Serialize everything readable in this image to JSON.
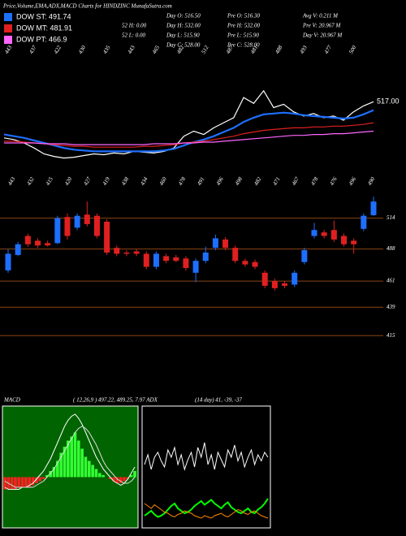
{
  "header": {
    "title": "Price,Volume,EMA,ADX,MACD Charts for HINDZINC MunafaSutra.com",
    "legend": [
      {
        "label": "DOW ST: 491.74",
        "color": "#1e6fff"
      },
      {
        "label": "DOW MT: 481.91",
        "color": "#e02020"
      },
      {
        "label": "DOW PT: 466.9",
        "color": "#ff66ff"
      }
    ],
    "stats": [
      [
        "52 H: 0.00",
        "52 L: 0.00"
      ],
      [
        "Day O: 516.50",
        "Day H: 532.00",
        "Day L: 515.90",
        "Day C: 528.00"
      ],
      [
        "Pre O: 516.30",
        "Pre H: 532.00",
        "Pre L: 515.90",
        "Pre C: 528.00"
      ],
      [
        "Avg V: 0.211 M",
        "Pre V: 20.967 M",
        "Day V: 20.967 M"
      ]
    ]
  },
  "chart_data": [
    {
      "type": "line",
      "annotation": "517.00",
      "ylim": [
        440,
        580
      ],
      "date_labels": [
        443,
        437,
        422,
        430,
        435,
        443,
        465,
        482,
        512,
        487,
        481,
        488,
        493,
        477,
        500
      ],
      "series": [
        {
          "color": "#ffffff",
          "values": [
            474,
            472,
            468,
            462,
            455,
            452,
            450,
            451,
            453,
            455,
            454,
            456,
            455,
            458,
            457,
            456,
            458,
            462,
            476,
            482,
            478,
            486,
            492,
            498,
            522,
            515,
            530,
            510,
            514,
            505,
            500,
            503,
            498,
            500,
            495,
            505,
            512,
            517
          ]
        },
        {
          "color": "#1e6fff",
          "values": [
            478,
            476,
            474,
            471,
            468,
            465,
            462,
            460,
            459,
            458,
            458,
            458,
            458,
            458,
            458,
            458,
            459,
            461,
            465,
            469,
            472,
            476,
            481,
            486,
            493,
            498,
            502,
            503,
            504,
            503,
            501,
            500,
            499,
            498,
            497,
            498,
            502,
            507
          ]
        },
        {
          "color": "#e02020",
          "values": [
            470,
            470,
            469,
            468,
            467,
            466,
            465,
            464,
            464,
            463,
            463,
            463,
            463,
            463,
            464,
            464,
            465,
            466,
            468,
            469,
            470,
            472,
            474,
            476,
            479,
            481,
            483,
            484,
            485,
            486,
            486,
            487,
            487,
            488,
            488,
            489,
            490,
            492
          ]
        },
        {
          "color": "#ff66ff",
          "values": [
            468,
            468,
            468,
            468,
            467,
            467,
            467,
            466,
            466,
            466,
            466,
            466,
            466,
            466,
            466,
            467,
            467,
            467,
            468,
            468,
            469,
            469,
            470,
            471,
            472,
            473,
            474,
            475,
            476,
            477,
            477,
            478,
            478,
            479,
            479,
            480,
            481,
            482
          ]
        }
      ]
    },
    {
      "type": "candlestick",
      "ylim": [
        407,
        537
      ],
      "yticks": [
        514,
        488,
        461,
        439,
        415
      ],
      "up_color": "#1e6fff",
      "down_color": "#e02020",
      "grid_color": "#8b4513",
      "date_labels": [
        443,
        432,
        415,
        420,
        427,
        419,
        438,
        434,
        460,
        478,
        491,
        496,
        498,
        482,
        471,
        467,
        478,
        476,
        496,
        490
      ],
      "open": [
        470,
        483,
        499,
        495,
        493,
        493,
        515,
        506,
        517,
        516,
        511,
        489,
        485,
        486,
        484,
        473,
        482,
        481,
        480,
        468,
        478,
        489,
        496,
        489,
        478,
        477,
        468,
        461,
        459,
        458,
        477,
        499,
        502,
        504,
        499,
        495,
        505,
        516.5
      ],
      "high": [
        488,
        494,
        501,
        497,
        495,
        516,
        518,
        518,
        528,
        518,
        513,
        491,
        487,
        488,
        486,
        486,
        484,
        483,
        482,
        480,
        490,
        500,
        498,
        491,
        480,
        479,
        470,
        463,
        461,
        470,
        489,
        510,
        504,
        512,
        501,
        497,
        518,
        532
      ],
      "low": [
        468,
        482,
        490,
        489,
        490,
        492,
        496,
        504,
        507,
        497,
        483,
        482,
        482,
        482,
        471,
        471,
        476,
        477,
        470,
        460,
        476,
        487,
        487,
        476,
        473,
        471,
        455,
        453,
        455,
        456,
        475,
        497,
        497,
        494,
        490,
        484,
        503,
        515.9
      ],
      "close": [
        484,
        492,
        492,
        491,
        491,
        514,
        499,
        516,
        509,
        499,
        485,
        484,
        484,
        484,
        473,
        484,
        478,
        478,
        472,
        478,
        485,
        497,
        489,
        478,
        475,
        473,
        457,
        455,
        457,
        468,
        487,
        504,
        499,
        496,
        492,
        492,
        516,
        528
      ]
    },
    {
      "type": "macd",
      "title": "MACD",
      "subtitle": "( 12,26,9 ) 497.22, 489.25, 7.97 ADX",
      "ylim": [
        -25,
        35
      ],
      "histogram": [
        -6,
        -6,
        -6,
        -6,
        -5,
        -5,
        -5,
        -5,
        -4,
        -3,
        -2,
        -1,
        1,
        3,
        5,
        8,
        12,
        15,
        18,
        20,
        22,
        18,
        14,
        10,
        8,
        6,
        4,
        2,
        1,
        0,
        -1,
        -2,
        -3,
        -3,
        -2,
        -1,
        1,
        3
      ],
      "series": [
        {
          "color": "#ffffff",
          "values": [
            -5,
            -6,
            -6,
            -6,
            -6,
            -5,
            -5,
            -4,
            -3,
            -1,
            1,
            3,
            6,
            9,
            13,
            17,
            21,
            25,
            28,
            30,
            31,
            29,
            26,
            22,
            18,
            14,
            10,
            7,
            4,
            2,
            0,
            -2,
            -3,
            -4,
            -3,
            -1,
            2,
            5
          ]
        },
        {
          "color": "#dddddd",
          "values": [
            -2,
            -3,
            -4,
            -5,
            -5,
            -5,
            -5,
            -5,
            -5,
            -4,
            -3,
            -2,
            0,
            2,
            4,
            7,
            10,
            13,
            16,
            19,
            22,
            24,
            25,
            24,
            22,
            19,
            16,
            12,
            8,
            5,
            3,
            1,
            -1,
            -2,
            -3,
            -3,
            -2,
            0
          ]
        }
      ]
    },
    {
      "type": "adx",
      "title": "(14 day) 41, -39, -37",
      "ylim": [
        0,
        100
      ],
      "series": [
        {
          "color": "#ffffff",
          "values": [
            52,
            60,
            48,
            58,
            62,
            55,
            50,
            64,
            58,
            66,
            52,
            60,
            48,
            56,
            62,
            50,
            66,
            58,
            70,
            52,
            60,
            48,
            62,
            56,
            50,
            64,
            58,
            68,
            55,
            62,
            50,
            58,
            64,
            52,
            60,
            55,
            62,
            58
          ]
        },
        {
          "color": "#00ff00",
          "values": [
            10,
            12,
            14,
            11,
            9,
            10,
            12,
            15,
            18,
            20,
            16,
            14,
            12,
            13,
            15,
            18,
            20,
            22,
            19,
            21,
            23,
            20,
            18,
            16,
            19,
            21,
            17,
            15,
            13,
            12,
            14,
            16,
            13,
            12,
            15,
            17,
            20,
            24
          ]
        },
        {
          "color": "#ff8c00",
          "values": [
            20,
            18,
            16,
            19,
            17,
            15,
            13,
            12,
            10,
            9,
            11,
            12,
            14,
            13,
            12,
            10,
            9,
            8,
            10,
            9,
            8,
            10,
            11,
            12,
            10,
            9,
            11,
            13,
            15,
            14,
            12,
            11,
            13,
            14,
            12,
            10,
            9,
            8
          ]
        }
      ]
    }
  ]
}
